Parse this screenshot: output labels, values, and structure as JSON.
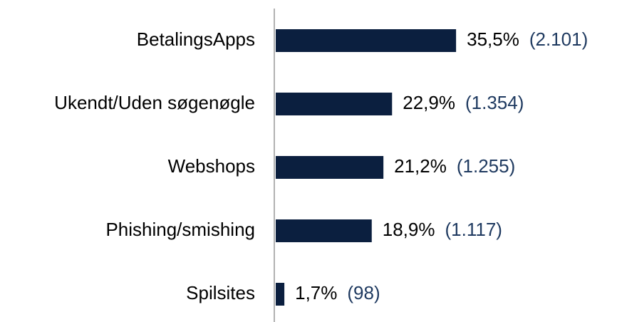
{
  "chart_data": {
    "type": "hbar",
    "categories": [
      "BetalingsApps",
      "Ukendt/Uden søgenøgle",
      "Webshops",
      "Phishing/smishing",
      "Spilsites"
    ],
    "values": [
      35.5,
      22.9,
      21.2,
      18.9,
      1.7
    ],
    "value_labels": [
      "35,5%",
      "22,9%",
      "21,2%",
      "18,9%",
      "1,7%"
    ],
    "count_labels": [
      "(2.101)",
      "(1.354)",
      "(1.255)",
      "(1.117)",
      "(98)"
    ],
    "color": "#0b1f3f"
  }
}
